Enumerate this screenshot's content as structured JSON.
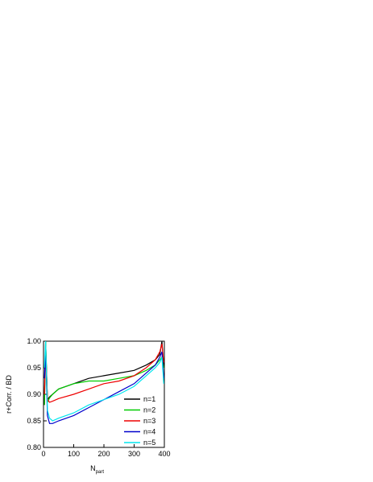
{
  "chart_data": {
    "type": "line",
    "xlabel": "N",
    "xlabel_sub": "part",
    "ylabel": "r+Corr. / BD",
    "x": [
      3,
      7,
      13,
      20,
      30,
      50,
      100,
      150,
      200,
      250,
      300,
      340,
      370,
      385,
      392,
      398
    ],
    "series": [
      {
        "name": "n=1",
        "color": "#000000",
        "values": [
          0.88,
          1.0,
          0.89,
          0.895,
          0.9,
          0.91,
          0.92,
          0.93,
          0.935,
          0.94,
          0.945,
          0.955,
          0.965,
          0.975,
          1.0,
          0.95
        ]
      },
      {
        "name": "n=2",
        "color": "#00cc00",
        "values": [
          0.88,
          1.0,
          0.885,
          0.893,
          0.9,
          0.91,
          0.92,
          0.925,
          0.925,
          0.93,
          0.935,
          0.945,
          0.955,
          0.965,
          0.97,
          0.95
        ]
      },
      {
        "name": "n=3",
        "color": "#ee0000",
        "values": [
          0.9,
          0.99,
          0.89,
          0.885,
          0.887,
          0.892,
          0.9,
          0.91,
          0.92,
          0.925,
          0.935,
          0.95,
          0.965,
          0.98,
          0.995,
          0.96
        ]
      },
      {
        "name": "n=4",
        "color": "#0000cc",
        "values": [
          0.93,
          0.98,
          0.86,
          0.845,
          0.845,
          0.85,
          0.86,
          0.875,
          0.89,
          0.905,
          0.92,
          0.94,
          0.955,
          0.97,
          0.98,
          0.93
        ]
      },
      {
        "name": "n=5",
        "color": "#00e5ee",
        "values": [
          0.95,
          1.0,
          0.87,
          0.855,
          0.85,
          0.855,
          0.865,
          0.88,
          0.89,
          0.9,
          0.915,
          0.935,
          0.95,
          0.96,
          0.97,
          0.92
        ]
      }
    ],
    "xlim": [
      0,
      400
    ],
    "xticks": [
      0,
      100,
      200,
      300,
      400
    ],
    "ylim": [
      0.8,
      1.0
    ],
    "yticks": [
      {
        "value": 0.8,
        "label": "0.80"
      },
      {
        "value": 0.85,
        "label": "0.85"
      },
      {
        "value": 0.9,
        "label": "0.90"
      },
      {
        "value": 0.95,
        "label": "0.95"
      },
      {
        "value": 1.0,
        "label": "1.00"
      }
    ],
    "legend": "lower right"
  }
}
